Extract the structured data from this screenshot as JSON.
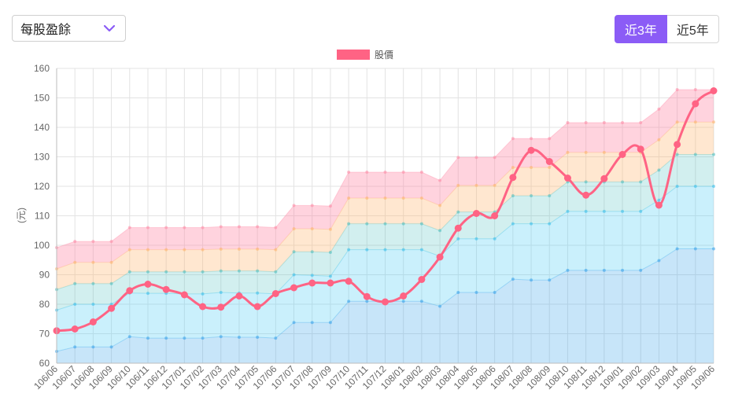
{
  "controls": {
    "metric_select": {
      "value": "每股盈餘"
    },
    "range_buttons": [
      {
        "label": "近3年",
        "active": true
      },
      {
        "label": "近5年",
        "active": false
      }
    ],
    "accent_color": "#8b5cf6"
  },
  "chart_data": {
    "type": "line",
    "title": "",
    "xlabel": "",
    "ylabel": "(元)",
    "ylim": [
      60,
      160
    ],
    "yticks": [
      60,
      70,
      80,
      90,
      100,
      110,
      120,
      130,
      140,
      150,
      160
    ],
    "grid": true,
    "legend": {
      "position": "top-center",
      "entries": [
        {
          "label": "股價",
          "color": "#ff6384"
        }
      ]
    },
    "categories": [
      "106/06",
      "106/07",
      "106/08",
      "106/09",
      "106/10",
      "106/11",
      "106/12",
      "107/01",
      "107/02",
      "107/03",
      "107/04",
      "107/05",
      "107/06",
      "107/07",
      "107/08",
      "107/09",
      "107/10",
      "107/11",
      "107/12",
      "108/01",
      "108/02",
      "108/03",
      "108/04",
      "108/05",
      "108/06",
      "108/07",
      "108/08",
      "108/09",
      "108/10",
      "108/11",
      "108/12",
      "109/01",
      "109/02",
      "109/03",
      "109/04",
      "109/05",
      "109/06"
    ],
    "series": [
      {
        "name": "股價",
        "color": "#ff6384",
        "values": [
          71,
          71.6,
          74,
          78.6,
          84.6,
          86.8,
          85,
          83.2,
          79.2,
          79,
          82.8,
          79.2,
          83.6,
          85.6,
          87.2,
          87.2,
          87.8,
          82.6,
          80.8,
          82.8,
          88.4,
          96,
          105.8,
          110.8,
          110,
          123,
          132.2,
          128.4,
          122.8,
          117,
          122.6,
          130.8,
          132.6,
          113.6,
          134.2,
          148,
          152.4
        ]
      }
    ],
    "bands": [
      {
        "color": "#36a2eb",
        "fill": "rgba(54,162,235,0.28)",
        "values": [
          64,
          65.5,
          65.5,
          65.5,
          69,
          68.5,
          68.5,
          68.5,
          68.5,
          69,
          68.8,
          68.8,
          68.5,
          73.8,
          73.8,
          73.8,
          81,
          81,
          81,
          81,
          81,
          79.3,
          84,
          84,
          84,
          88.5,
          88.2,
          88.2,
          91.5,
          91.5,
          91.5,
          91.5,
          91.5,
          94.8,
          98.8,
          98.8,
          98.8
        ]
      },
      {
        "color": "#36c0eb",
        "fill": "rgba(80,205,245,0.30)",
        "values": [
          78,
          80,
          80,
          80,
          83.8,
          83.7,
          83.7,
          83.5,
          83.5,
          84,
          83.8,
          83.8,
          83.5,
          90,
          89.8,
          89.5,
          98.5,
          98.5,
          98.5,
          98.5,
          98.5,
          96.3,
          102.2,
          102.2,
          102.2,
          107.3,
          107.3,
          107.3,
          111.5,
          111.5,
          111.5,
          111.5,
          111.5,
          115.3,
          120,
          120,
          120
        ]
      },
      {
        "color": "#4bc0c0",
        "fill": "rgba(75,192,192,0.25)",
        "values": [
          85,
          87,
          87,
          87,
          91,
          91,
          91,
          91,
          91,
          91.3,
          91.3,
          91.3,
          91,
          97.8,
          97.8,
          97.6,
          107.3,
          107.3,
          107.3,
          107.3,
          107.3,
          105,
          111.3,
          111.3,
          111.3,
          116.8,
          116.8,
          116.8,
          121.5,
          121.5,
          121.5,
          121.5,
          121.5,
          125.5,
          130.8,
          130.8,
          130.8
        ]
      },
      {
        "color": "#ffb46a",
        "fill": "rgba(255,180,110,0.32)",
        "values": [
          92,
          94.2,
          94.2,
          94.2,
          98.5,
          98.5,
          98.5,
          98.5,
          98.5,
          98.7,
          98.7,
          98.7,
          98.5,
          105.6,
          105.6,
          105.4,
          116,
          116,
          116,
          116,
          116,
          113.5,
          120.3,
          120.3,
          120.3,
          126.4,
          126.4,
          126.4,
          131.5,
          131.5,
          131.5,
          131.5,
          131.5,
          135.8,
          141.8,
          141.8,
          141.8
        ]
      },
      {
        "color": "#ff8aa6",
        "fill": "rgba(255,130,160,0.35)",
        "values": [
          99.2,
          101.3,
          101.3,
          101.3,
          106,
          106,
          106,
          106,
          106,
          106.3,
          106.3,
          106.3,
          106,
          113.5,
          113.5,
          113.3,
          124.8,
          124.8,
          124.8,
          124.8,
          124.8,
          122,
          129.8,
          129.8,
          129.8,
          136.2,
          136.2,
          136.2,
          141.6,
          141.6,
          141.6,
          141.6,
          141.6,
          146.2,
          152.8,
          152.8,
          152.8
        ]
      }
    ]
  }
}
